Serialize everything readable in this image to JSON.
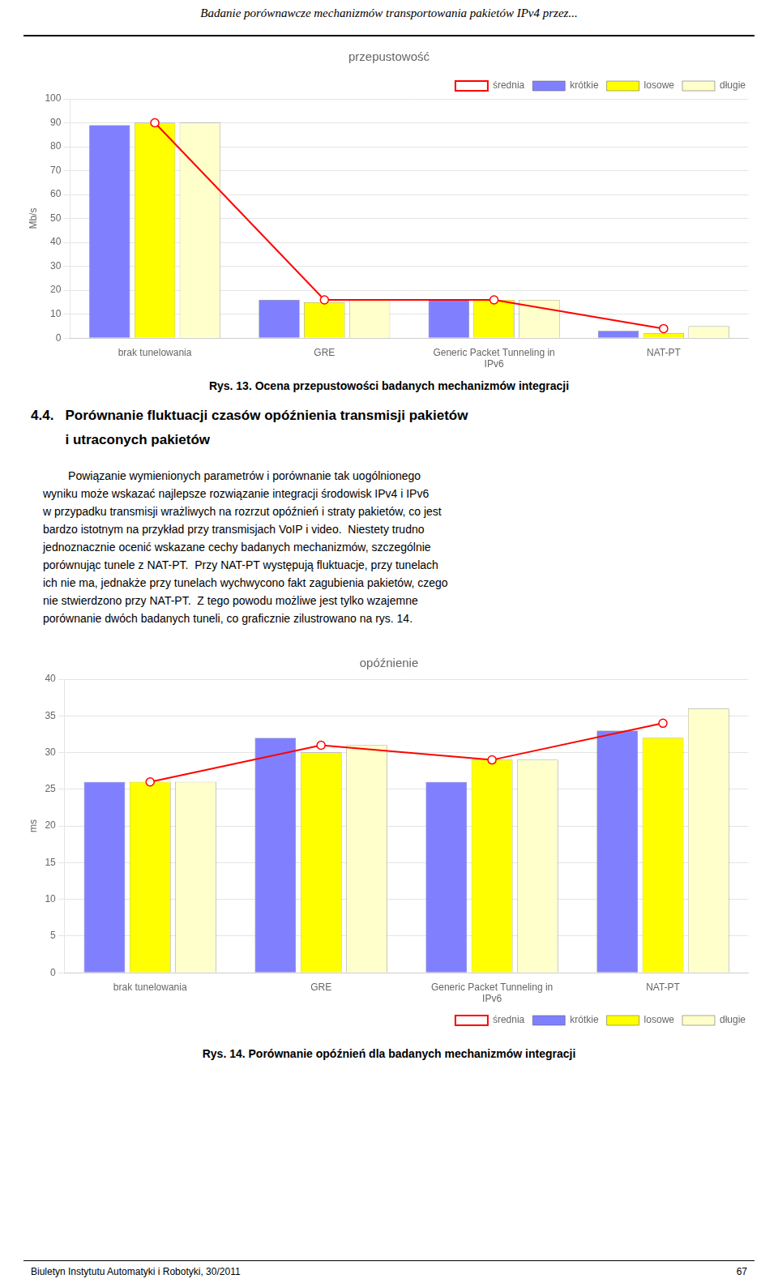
{
  "page_title": "Badanie porównawcze mechanizmów transportowania pakietów IPv4 przez...",
  "section_title_lines": [
    "4.4.   Porównanie fluktuacji czasów opóźnienia transmisji pakietów",
    "         i utraconych pakietów"
  ],
  "paragraph_lines": [
    "        Powiązanie wymienionych parametrów i porównanie tak uogólnionego",
    "wyniku może wskazać najlepsze rozwiązanie integracji środowisk IPv4 i IPv6",
    "w przypadku transmisji wrażliwych na rozrzut opóźnień i straty pakietów, co jest",
    "bardzo istotnym na przykład przy transmisjach VoIP i video.  Niestety trudno",
    "jednoznacznie ocenić wskazane cechy badanych mechanizmów, szczególnie",
    "porównując tunele z NAT-PT.  Przy NAT-PT występują fluktuacje, przy tunelach",
    "ich nie ma, jednakże przy tunelach wychwycono fakt zagubienia pakietów, czego",
    "nie stwierdzono przy NAT-PT.  Z tego powodu możliwe jest tylko wzajemne",
    "porównanie dwóch badanych tuneli, co graficznie zilustrowano na rys. 14."
  ],
  "footer_left": "Biuletyn Instytutu Automatyki i Robotyki, 30/2011",
  "footer_right": "67",
  "chart_data": [
    {
      "type": "bar",
      "title": "przepustowość",
      "caption": "Rys. 13. Ocena przepustowości badanych mechanizmów integracji",
      "ylabel": "Mb/s",
      "categories": [
        "brak tunelowania",
        "GRE",
        "Generic Packet Tunneling in\nIPv6",
        "NAT-PT"
      ],
      "series": [
        {
          "name": "krótkie",
          "color": "#8080ff",
          "values": [
            89,
            16,
            16,
            3
          ]
        },
        {
          "name": "losowe",
          "color": "#ffff00",
          "values": [
            90,
            15,
            16,
            2
          ]
        },
        {
          "name": "długie",
          "color": "#ffffcc",
          "values": [
            90,
            16,
            16,
            5
          ]
        },
        {
          "name": "średnia",
          "type": "line",
          "color": "#ff0000",
          "marker": "circle",
          "values": [
            90,
            16,
            16,
            4
          ]
        }
      ],
      "ylim": [
        0,
        100
      ],
      "yticks": [
        0,
        10,
        20,
        30,
        40,
        50,
        60,
        70,
        80,
        90,
        100
      ],
      "grid": true,
      "legend": "upper right"
    },
    {
      "type": "bar",
      "title": "opóźnienie",
      "caption": "Rys. 14. Porównanie opóźnień dla badanych mechanizmów integracji",
      "ylabel": "ms",
      "categories": [
        "brak tunelowania",
        "GRE",
        "Generic Packet Tunneling in\nIPv6",
        "NAT-PT"
      ],
      "series": [
        {
          "name": "krótkie",
          "color": "#8080ff",
          "values": [
            26,
            32,
            26,
            33
          ]
        },
        {
          "name": "losowe",
          "color": "#ffff00",
          "values": [
            26,
            30,
            29,
            32
          ]
        },
        {
          "name": "długie",
          "color": "#ffffcc",
          "values": [
            26,
            31,
            29,
            36
          ]
        },
        {
          "name": "średnia",
          "type": "line",
          "color": "#ff0000",
          "marker": "circle",
          "values": [
            26,
            31,
            29,
            34
          ]
        }
      ],
      "ylim": [
        0,
        40
      ],
      "yticks": [
        0,
        5,
        10,
        15,
        20,
        25,
        30,
        35,
        40
      ],
      "grid": true,
      "legend": "lower right"
    }
  ]
}
